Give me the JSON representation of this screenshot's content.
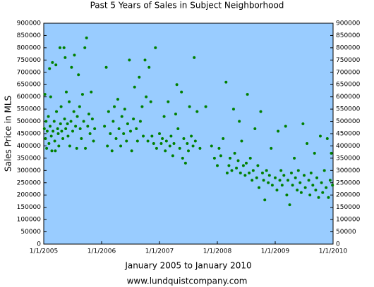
{
  "chart_data": {
    "type": "scatter",
    "title": "Past 5 Years of Sales in Subject Neighborhood",
    "y_label": "Sales Price in MLS",
    "x_label": "January 2005 to January 2010",
    "footer": "www.lundquistcompany.com",
    "color": "#008000",
    "background": "#99ccff",
    "grid": false,
    "xlim": [
      2005,
      2010
    ],
    "xticks": [
      {
        "value": 2005,
        "label": "1/1/2005"
      },
      {
        "value": 2006,
        "label": "1/1/2006"
      },
      {
        "value": 2007,
        "label": "1/1/2007"
      },
      {
        "value": 2008,
        "label": "1/1/2008"
      },
      {
        "value": 2009,
        "label": "1/1/2009"
      },
      {
        "value": 2010,
        "label": "1/1/2010"
      }
    ],
    "ylim": [
      0,
      900000
    ],
    "yticks": [
      0,
      50000,
      100000,
      150000,
      200000,
      250000,
      300000,
      350000,
      400000,
      450000,
      500000,
      550000,
      600000,
      650000,
      700000,
      750000,
      800000,
      850000,
      900000
    ],
    "x": [
      2005.01,
      2005.02,
      2005.03,
      2005.04,
      2005.05,
      2005.06,
      2005.08,
      2005.09,
      2005.1,
      2005.11,
      2005.12,
      2005.13,
      2005.14,
      2005.15,
      2005.16,
      2005.18,
      2005.19,
      2005.2,
      2005.21,
      2005.22,
      2005.24,
      2005.25,
      2005.26,
      2005.28,
      2005.29,
      2005.3,
      2005.31,
      2005.33,
      2005.35,
      2005.36,
      2005.37,
      2005.38,
      2005.39,
      2005.41,
      2005.42,
      2005.44,
      2005.45,
      2005.47,
      2005.48,
      2005.5,
      2005.52,
      2005.53,
      2005.55,
      2005.57,
      2005.58,
      2005.6,
      2005.62,
      2005.63,
      2005.65,
      2005.67,
      2005.69,
      2005.71,
      2005.72,
      2005.74,
      2005.76,
      2005.78,
      2005.8,
      2005.82,
      2005.84,
      2005.86,
      2005.88,
      2006.05,
      2006.08,
      2006.1,
      2006.12,
      2006.15,
      2006.18,
      2006.2,
      2006.22,
      2006.25,
      2006.28,
      2006.3,
      2006.33,
      2006.35,
      2006.38,
      2006.4,
      2006.43,
      2006.45,
      2006.48,
      2006.5,
      2006.52,
      2006.55,
      2006.57,
      2006.6,
      2006.62,
      2006.65,
      2006.67,
      2006.7,
      2006.72,
      2006.75,
      2006.77,
      2006.8,
      2006.82,
      2006.85,
      2006.87,
      2006.9,
      2006.93,
      2006.95,
      2007.0,
      2007.03,
      2007.05,
      2007.08,
      2007.1,
      2007.12,
      2007.15,
      2007.18,
      2007.2,
      2007.23,
      2007.25,
      2007.28,
      2007.3,
      2007.32,
      2007.35,
      2007.38,
      2007.4,
      2007.42,
      2007.45,
      2007.48,
      2007.5,
      2007.52,
      2007.55,
      2007.58,
      2007.6,
      2007.62,
      2007.65,
      2007.7,
      2007.8,
      2007.9,
      2007.95,
      2008.0,
      2008.03,
      2008.06,
      2008.1,
      2008.15,
      2008.17,
      2008.2,
      2008.22,
      2008.25,
      2008.28,
      2008.3,
      2008.33,
      2008.36,
      2008.38,
      2008.4,
      2008.42,
      2008.45,
      2008.48,
      2008.5,
      2008.52,
      2008.55,
      2008.57,
      2008.6,
      2008.62,
      2008.65,
      2008.68,
      2008.7,
      2008.72,
      2008.75,
      2008.78,
      2008.8,
      2008.82,
      2008.85,
      2008.88,
      2008.9,
      2008.93,
      2008.95,
      2009.0,
      2009.03,
      2009.05,
      2009.08,
      2009.1,
      2009.12,
      2009.15,
      2009.18,
      2009.2,
      2009.22,
      2009.25,
      2009.28,
      2009.3,
      2009.33,
      2009.35,
      2009.38,
      2009.4,
      2009.43,
      2009.45,
      2009.48,
      2009.5,
      2009.52,
      2009.55,
      2009.58,
      2009.6,
      2009.62,
      2009.65,
      2009.68,
      2009.7,
      2009.72,
      2009.75,
      2009.78,
      2009.8,
      2009.82,
      2009.85,
      2009.88,
      2009.9,
      2009.92,
      2009.95,
      2009.97,
      2009.99
    ],
    "values": [
      470000,
      610000,
      430000,
      500000,
      390000,
      460000,
      520000,
      410000,
      715000,
      480000,
      600000,
      440000,
      380000,
      740000,
      460000,
      500000,
      420000,
      380000,
      730000,
      540000,
      470000,
      450000,
      400000,
      800000,
      490000,
      560000,
      460000,
      430000,
      800000,
      510000,
      760000,
      470000,
      620000,
      490000,
      440000,
      580000,
      400000,
      500000,
      720000,
      460000,
      540000,
      770000,
      480000,
      390000,
      520000,
      690000,
      560000,
      470000,
      430000,
      610000,
      500000,
      800000,
      390000,
      840000,
      480000,
      530000,
      450000,
      620000,
      510000,
      420000,
      470000,
      480000,
      720000,
      400000,
      540000,
      450000,
      380000,
      500000,
      560000,
      430000,
      590000,
      470000,
      400000,
      520000,
      450000,
      550000,
      420000,
      490000,
      750000,
      460000,
      380000,
      510000,
      640000,
      470000,
      420000,
      680000,
      500000,
      560000,
      440000,
      750000,
      600000,
      420000,
      720000,
      580000,
      440000,
      410000,
      800000,
      390000,
      450000,
      410000,
      430000,
      520000,
      380000,
      420000,
      580000,
      400000,
      440000,
      360000,
      410000,
      530000,
      650000,
      470000,
      390000,
      620000,
      350000,
      430000,
      330000,
      410000,
      380000,
      560000,
      440000,
      400000,
      760000,
      420000,
      540000,
      390000,
      560000,
      400000,
      350000,
      320000,
      390000,
      360000,
      430000,
      660000,
      290000,
      320000,
      350000,
      300000,
      550000,
      370000,
      310000,
      340000,
      500000,
      290000,
      420000,
      320000,
      280000,
      330000,
      610000,
      290000,
      350000,
      260000,
      300000,
      470000,
      270000,
      320000,
      230000,
      540000,
      290000,
      260000,
      180000,
      300000,
      250000,
      280000,
      390000,
      240000,
      270000,
      220000,
      460000,
      260000,
      300000,
      240000,
      280000,
      480000,
      200000,
      260000,
      160000,
      290000,
      240000,
      350000,
      270000,
      220000,
      300000,
      250000,
      210000,
      490000,
      280000,
      230000,
      410000,
      260000,
      200000,
      290000,
      240000,
      370000,
      220000,
      270000,
      190000,
      440000,
      250000,
      210000,
      300000,
      230000,
      430000,
      190000,
      260000,
      370000,
      240000
    ]
  }
}
